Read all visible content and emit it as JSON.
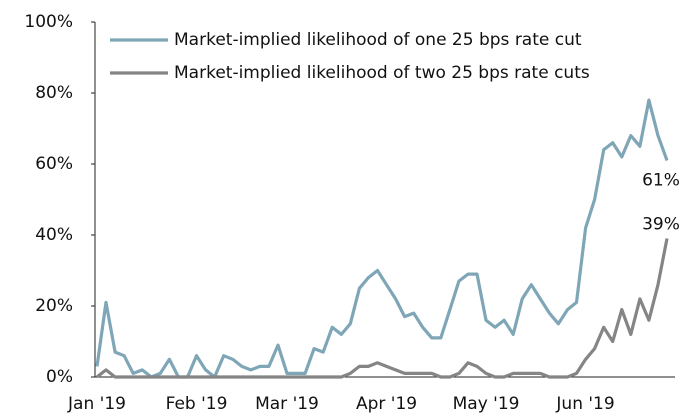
{
  "chart_data": {
    "type": "line",
    "categories": [
      "Jan '19",
      null,
      null,
      null,
      null,
      null,
      null,
      null,
      null,
      null,
      null,
      "Feb '19",
      null,
      null,
      null,
      null,
      null,
      null,
      null,
      null,
      null,
      "Mar '19",
      null,
      null,
      null,
      null,
      null,
      null,
      null,
      null,
      null,
      null,
      "Apr '19",
      null,
      null,
      null,
      null,
      null,
      null,
      null,
      null,
      null,
      null,
      "May '19",
      null,
      null,
      null,
      null,
      null,
      null,
      null,
      null,
      null,
      null,
      "Jun '19",
      null,
      null,
      null,
      null,
      null,
      null,
      null,
      null,
      null
    ],
    "series": [
      {
        "name": "Market-implied likelihood of one 25 bps rate cut",
        "color": "#7fa6b7",
        "values": [
          3,
          21,
          7,
          6,
          1,
          2,
          0,
          1,
          5,
          0,
          0,
          6,
          2,
          0,
          6,
          5,
          3,
          2,
          3,
          3,
          9,
          1,
          1,
          1,
          8,
          7,
          14,
          12,
          15,
          25,
          28,
          30,
          26,
          22,
          17,
          18,
          14,
          11,
          11,
          19,
          27,
          29,
          29,
          16,
          14,
          16,
          12,
          22,
          26,
          22,
          18,
          15,
          19,
          21,
          42,
          50,
          64,
          66,
          62,
          68,
          65,
          78,
          68,
          61
        ],
        "value_labels": [
          null,
          null,
          null,
          null,
          null,
          null,
          null,
          null,
          null,
          null,
          null,
          null,
          null,
          null,
          null,
          null,
          null,
          null,
          null,
          null,
          null,
          null,
          null,
          null,
          null,
          null,
          null,
          null,
          null,
          null,
          null,
          null,
          null,
          null,
          null,
          null,
          null,
          null,
          null,
          null,
          null,
          null,
          null,
          null,
          null,
          null,
          null,
          null,
          null,
          null,
          null,
          null,
          null,
          null,
          null,
          null,
          null,
          null,
          null,
          null,
          null,
          null,
          null,
          "61%"
        ]
      },
      {
        "name": "Market-implied likelihood of two 25 bps rate cuts",
        "color": "#858585",
        "values": [
          0,
          2,
          0,
          0,
          0,
          0,
          0,
          0,
          0,
          0,
          0,
          0,
          0,
          0,
          0,
          0,
          0,
          0,
          0,
          0,
          0,
          0,
          0,
          0,
          0,
          0,
          0,
          0,
          1,
          3,
          3,
          4,
          3,
          2,
          1,
          1,
          1,
          1,
          0,
          0,
          1,
          4,
          3,
          1,
          0,
          0,
          1,
          1,
          1,
          1,
          0,
          0,
          0,
          1,
          5,
          8,
          14,
          10,
          19,
          12,
          22,
          16,
          26,
          39
        ],
        "value_labels": [
          null,
          null,
          null,
          null,
          null,
          null,
          null,
          null,
          null,
          null,
          null,
          null,
          null,
          null,
          null,
          null,
          null,
          null,
          null,
          null,
          null,
          null,
          null,
          null,
          null,
          null,
          null,
          null,
          null,
          null,
          null,
          null,
          null,
          null,
          null,
          null,
          null,
          null,
          null,
          null,
          null,
          null,
          null,
          null,
          null,
          null,
          null,
          null,
          null,
          null,
          null,
          null,
          null,
          null,
          null,
          null,
          null,
          null,
          null,
          null,
          null,
          null,
          null,
          "39%"
        ]
      }
    ],
    "ylim": [
      0,
      100
    ],
    "yticks": [
      {
        "value": 0,
        "label": "0%"
      },
      {
        "value": 20,
        "label": "20%"
      },
      {
        "value": 40,
        "label": "40%"
      },
      {
        "value": 60,
        "label": "60%"
      },
      {
        "value": 80,
        "label": "80%"
      },
      {
        "value": 100,
        "label": "100%"
      }
    ],
    "grid": false,
    "legend": "top"
  }
}
